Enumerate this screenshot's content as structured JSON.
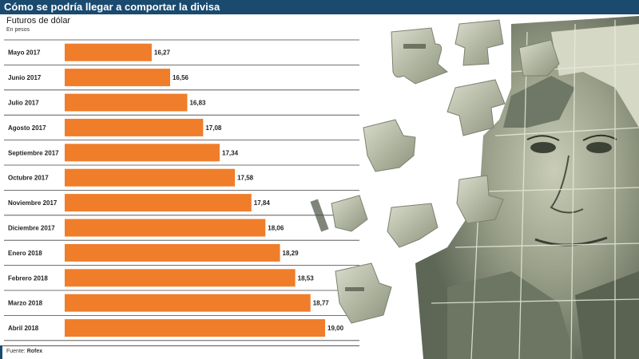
{
  "header": {
    "title": "Cómo se podría llegar a comportar la divisa",
    "subtitle": "Futuros de dólar",
    "unit": "En pesos"
  },
  "footer": {
    "source_prefix": "Fuente:",
    "source_name": "Rofex"
  },
  "colors": {
    "bar": "#f07d2a",
    "title_bg": "#1a4a6e",
    "gridline": "#444444"
  },
  "illustration": {
    "description_icon": "dollar-puzzle-illustration"
  },
  "chart_data": {
    "type": "bar",
    "orientation": "horizontal",
    "title": "Cómo se podría llegar a comportar la divisa",
    "subtitle": "Futuros de dólar",
    "ylabel": "En pesos",
    "categories": [
      "Mayo 2017",
      "Junio 2017",
      "Julio 2017",
      "Agosto 2017",
      "Septiembre 2017",
      "Octubre 2017",
      "Noviembre 2017",
      "Diciembre 2017",
      "Enero 2018",
      "Febrero 2018",
      "Marzo 2018",
      "Abril 2018"
    ],
    "values": [
      16.27,
      16.56,
      16.83,
      17.08,
      17.34,
      17.58,
      17.84,
      18.06,
      18.29,
      18.53,
      18.77,
      19.0
    ],
    "value_labels": [
      "16,27",
      "16,56",
      "16,83",
      "17,08",
      "17,34",
      "17,58",
      "17,84",
      "18,06",
      "18,29",
      "18,53",
      "18,77",
      "19,00"
    ],
    "xlim": [
      14.9,
      19.0
    ]
  }
}
